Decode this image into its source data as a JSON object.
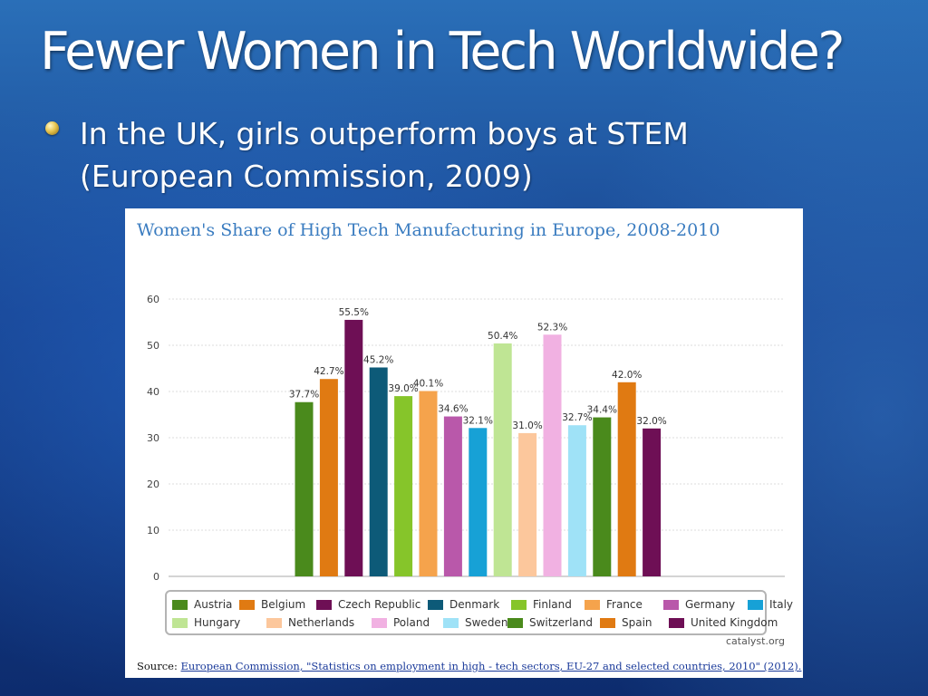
{
  "slide": {
    "title": "Fewer Women in Tech Worldwide?",
    "bullet_line1": "In the UK, girls outperform boys at STEM",
    "bullet_line2": "(European Commission, 2009)"
  },
  "chart_data": {
    "type": "bar",
    "title": "Women's Share of High Tech Manufacturing in Europe, 2008-2010",
    "xlabel": "",
    "ylabel": "",
    "ylim": [
      0,
      60
    ],
    "yticks": [
      0,
      10,
      20,
      30,
      40,
      50,
      60
    ],
    "grid": true,
    "legend_position": "bottom",
    "categories": [
      "Austria",
      "Belgium",
      "Czech Republic",
      "Denmark",
      "Finland",
      "France",
      "Germany",
      "Italy",
      "Hungary",
      "Netherlands",
      "Poland",
      "Sweden",
      "Switzerland",
      "Spain",
      "United Kingdom"
    ],
    "values": [
      37.7,
      42.7,
      55.5,
      45.2,
      39.0,
      40.1,
      34.6,
      32.1,
      50.4,
      31.0,
      52.3,
      32.7,
      34.4,
      42.0,
      32.0
    ],
    "labels": [
      "37.7%",
      "42.7%",
      "55.5%",
      "45.2%",
      "39.0%",
      "40.1%",
      "34.6%",
      "32.1%",
      "50.4%",
      "31.0%",
      "52.3%",
      "32.7%",
      "34.4%",
      "42.0%",
      "32.0%"
    ],
    "colors": [
      "#4a8a1c",
      "#e07a12",
      "#6e0f55",
      "#0d5a78",
      "#86c52a",
      "#f5a34c",
      "#b958aa",
      "#17a1d6",
      "#bfe594",
      "#fcc79c",
      "#f1b1e2",
      "#9fe2f7",
      "#4a8a1c",
      "#e07a12",
      "#6e0f55"
    ],
    "legend_rows": [
      [
        "Austria",
        "Belgium",
        "Czech Republic",
        "Denmark",
        "Finland",
        "France",
        "Germany",
        "Italy"
      ],
      [
        "Hungary",
        "Netherlands",
        "Poland",
        "Sweden",
        "Switzerland",
        "Spain",
        "United Kingdom"
      ]
    ],
    "credit": "catalyst.org",
    "source_label": "Source:",
    "source_text": "European Commission, \"Statistics on employment in high - tech sectors, EU-27 and selected countries, 2010\" (2012)."
  }
}
